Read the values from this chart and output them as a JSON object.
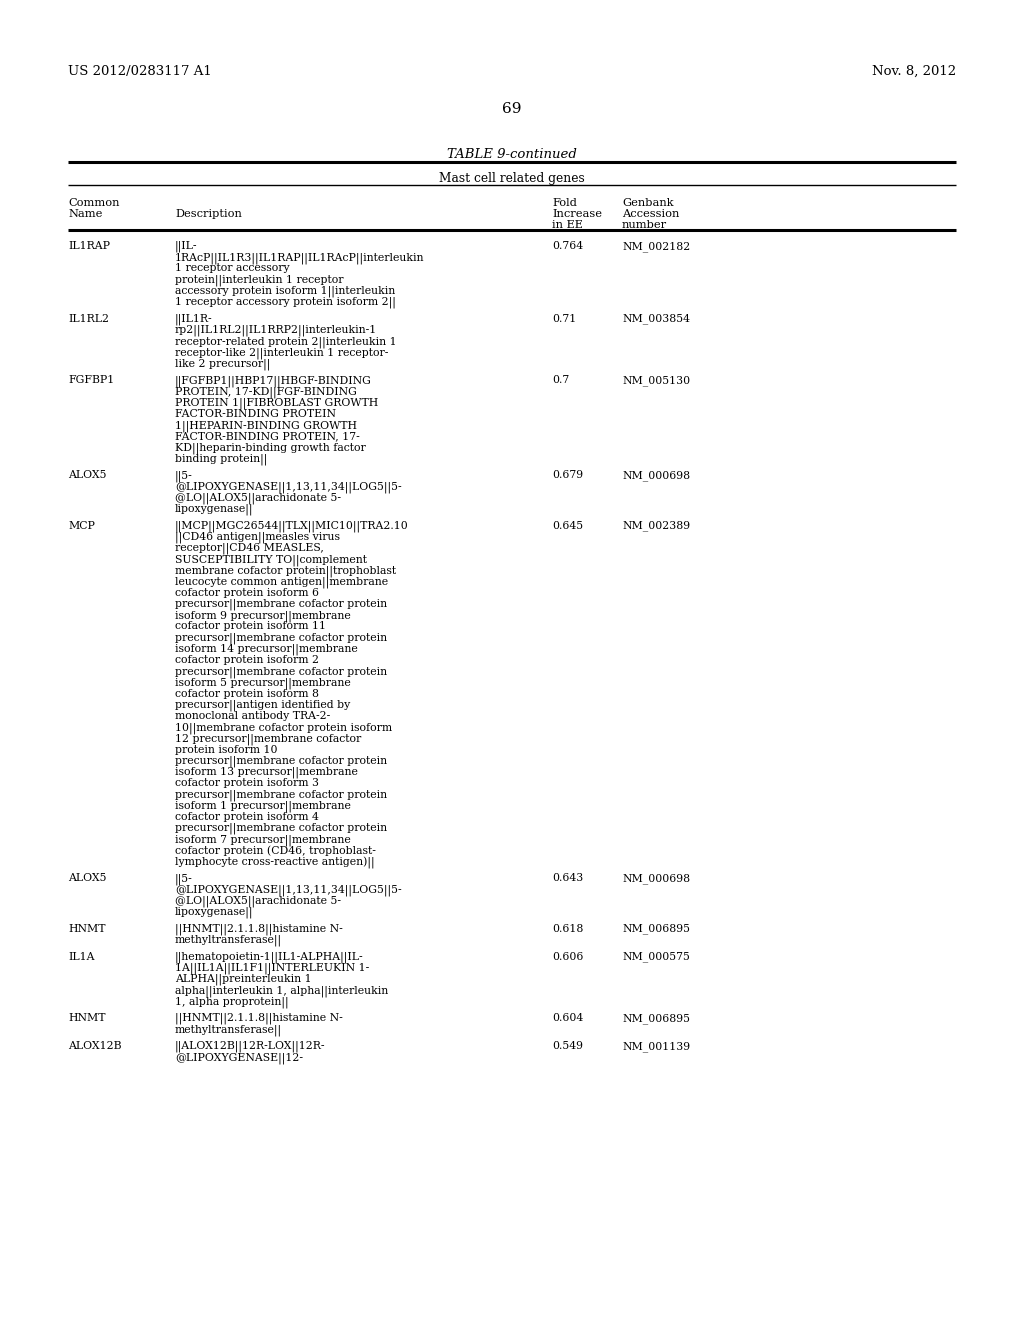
{
  "patent_number": "US 2012/0283117 A1",
  "patent_date": "Nov. 8, 2012",
  "page_number": "69",
  "table_title": "TABLE 9-continued",
  "table_subtitle": "Mast cell related genes",
  "rows": [
    {
      "name": "IL1RAP",
      "description": [
        "||IL-",
        "1RAcP||IL1R3||IL1RAP||IL1RAcP||interleukin",
        "1 receptor accessory",
        "protein||interleukin 1 receptor",
        "accessory protein isoform 1||interleukin",
        "1 receptor accessory protein isoform 2||"
      ],
      "fold": "0.764",
      "accession": "NM_002182"
    },
    {
      "name": "IL1RL2",
      "description": [
        "||IL1R-",
        "rp2||IL1RL2||IL1RRP2||interleukin-1",
        "receptor-related protein 2||interleukin 1",
        "receptor-like 2||interleukin 1 receptor-",
        "like 2 precursor||"
      ],
      "fold": "0.71",
      "accession": "NM_003854"
    },
    {
      "name": "FGFBP1",
      "description": [
        "||FGFBP1||HBP17||HBGF-BINDING",
        "PROTEIN, 17-KD||FGF-BINDING",
        "PROTEIN 1||FIBROBLAST GROWTH",
        "FACTOR-BINDING PROTEIN",
        "1||HEPARIN-BINDING GROWTH",
        "FACTOR-BINDING PROTEIN, 17-",
        "KD||heparin-binding growth factor",
        "binding protein||"
      ],
      "fold": "0.7",
      "accession": "NM_005130"
    },
    {
      "name": "ALOX5",
      "description": [
        "||5-",
        "@LIPOXYGENASE||1,13,11,34||LOG5||5-",
        "@LO||ALOX5||arachidonate 5-",
        "lipoxygenase||"
      ],
      "fold": "0.679",
      "accession": "NM_000698"
    },
    {
      "name": "MCP",
      "description": [
        "||MCP||MGC26544||TLX||MIC10||TRA2.10",
        "||CD46 antigen||measles virus",
        "receptor||CD46 MEASLES,",
        "SUSCEPTIBILITY TO||complement",
        "membrane cofactor protein||trophoblast",
        "leucocyte common antigen||membrane",
        "cofactor protein isoform 6",
        "precursor||membrane cofactor protein",
        "isoform 9 precursor||membrane",
        "cofactor protein isoform 11",
        "precursor||membrane cofactor protein",
        "isoform 14 precursor||membrane",
        "cofactor protein isoform 2",
        "precursor||membrane cofactor protein",
        "isoform 5 precursor||membrane",
        "cofactor protein isoform 8",
        "precursor||antigen identified by",
        "monoclonal antibody TRA-2-",
        "10||membrane cofactor protein isoform",
        "12 precursor||membrane cofactor",
        "protein isoform 10",
        "precursor||membrane cofactor protein",
        "isoform 13 precursor||membrane",
        "cofactor protein isoform 3",
        "precursor||membrane cofactor protein",
        "isoform 1 precursor||membrane",
        "cofactor protein isoform 4",
        "precursor||membrane cofactor protein",
        "isoform 7 precursor||membrane",
        "cofactor protein (CD46, trophoblast-",
        "lymphocyte cross-reactive antigen)||"
      ],
      "fold": "0.645",
      "accession": "NM_002389"
    },
    {
      "name": "ALOX5",
      "description": [
        "||5-",
        "@LIPOXYGENASE||1,13,11,34||LOG5||5-",
        "@LO||ALOX5||arachidonate 5-",
        "lipoxygenase||"
      ],
      "fold": "0.643",
      "accession": "NM_000698"
    },
    {
      "name": "HNMT",
      "description": [
        "||HNMT||2.1.1.8||histamine N-",
        "methyltransferase||"
      ],
      "fold": "0.618",
      "accession": "NM_006895"
    },
    {
      "name": "IL1A",
      "description": [
        "||hematopoietin-1||IL1-ALPHA||IL-",
        "1A||IL1A||IL1F1||INTERLEUKIN 1-",
        "ALPHA||preinterleukin 1",
        "alpha||interleukin 1, alpha||interleukin",
        "1, alpha proprotein||"
      ],
      "fold": "0.606",
      "accession": "NM_000575"
    },
    {
      "name": "HNMT",
      "description": [
        "||HNMT||2.1.1.8||histamine N-",
        "methyltransferase||"
      ],
      "fold": "0.604",
      "accession": "NM_006895"
    },
    {
      "name": "ALOX12B",
      "description": [
        "||ALOX12B||12R-LOX||12R-",
        "@LIPOXYGENASE||12-"
      ],
      "fold": "0.549",
      "accession": "NM_001139"
    }
  ],
  "bg_color": "#ffffff",
  "text_color": "#000000"
}
